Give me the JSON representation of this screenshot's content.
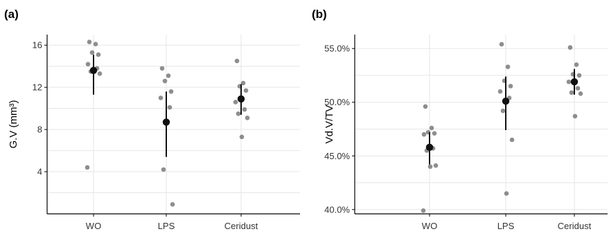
{
  "chart_data": [
    {
      "panel_label": "(a)",
      "type": "scatter",
      "ylabel": "G.V (mm³)",
      "categories": [
        "WO",
        "LPS",
        "Ceridust"
      ],
      "ylim": [
        0,
        17
      ],
      "yticks": [
        4,
        8,
        12,
        16
      ],
      "ytick_labels": [
        "4",
        "8",
        "12",
        "16"
      ],
      "grid": true,
      "points": [
        {
          "group": "WO",
          "values": [
            16.3,
            16.1,
            15.3,
            15.1,
            14.2,
            13.8,
            13.5,
            13.3,
            13.6,
            4.4
          ]
        },
        {
          "group": "LPS",
          "values": [
            13.8,
            13.1,
            12.6,
            11.6,
            11.0,
            10.1,
            4.2,
            0.9
          ]
        },
        {
          "group": "Ceridust",
          "values": [
            14.5,
            12.4,
            12.1,
            11.7,
            10.6,
            9.9,
            9.5,
            9.1,
            7.3
          ]
        }
      ],
      "summary": [
        {
          "group": "WO",
          "mean": 13.6,
          "lower": 11.3,
          "upper": 15.1
        },
        {
          "group": "LPS",
          "mean": 8.7,
          "lower": 5.4,
          "upper": 11.6
        },
        {
          "group": "Ceridust",
          "mean": 10.9,
          "lower": 9.4,
          "upper": 12.3
        }
      ]
    },
    {
      "panel_label": "(b)",
      "type": "scatter",
      "ylabel": "Vd.V/TV",
      "categories": [
        "WO",
        "LPS",
        "Ceridust"
      ],
      "ylim": [
        39.6,
        56.3
      ],
      "yticks": [
        40,
        45,
        50,
        55
      ],
      "ytick_labels": [
        "40.0%",
        "45.0%",
        "50.0%",
        "55.0%"
      ],
      "grid": true,
      "points": [
        {
          "group": "WO",
          "values": [
            49.6,
            47.6,
            47.2,
            47.1,
            47.0,
            45.7,
            45.5,
            44.1,
            44.0,
            39.9
          ]
        },
        {
          "group": "LPS",
          "values": [
            55.4,
            53.3,
            52.0,
            51.5,
            51.0,
            50.4,
            49.2,
            46.5,
            41.5
          ]
        },
        {
          "group": "Ceridust",
          "values": [
            55.1,
            53.5,
            52.6,
            52.5,
            51.9,
            51.3,
            50.9,
            50.8,
            48.7
          ]
        }
      ],
      "summary": [
        {
          "group": "WO",
          "mean": 45.8,
          "lower": 44.2,
          "upper": 47.2
        },
        {
          "group": "LPS",
          "mean": 50.1,
          "lower": 47.4,
          "upper": 52.4
        },
        {
          "group": "Ceridust",
          "mean": 51.9,
          "lower": 50.7,
          "upper": 53.1
        }
      ]
    }
  ]
}
